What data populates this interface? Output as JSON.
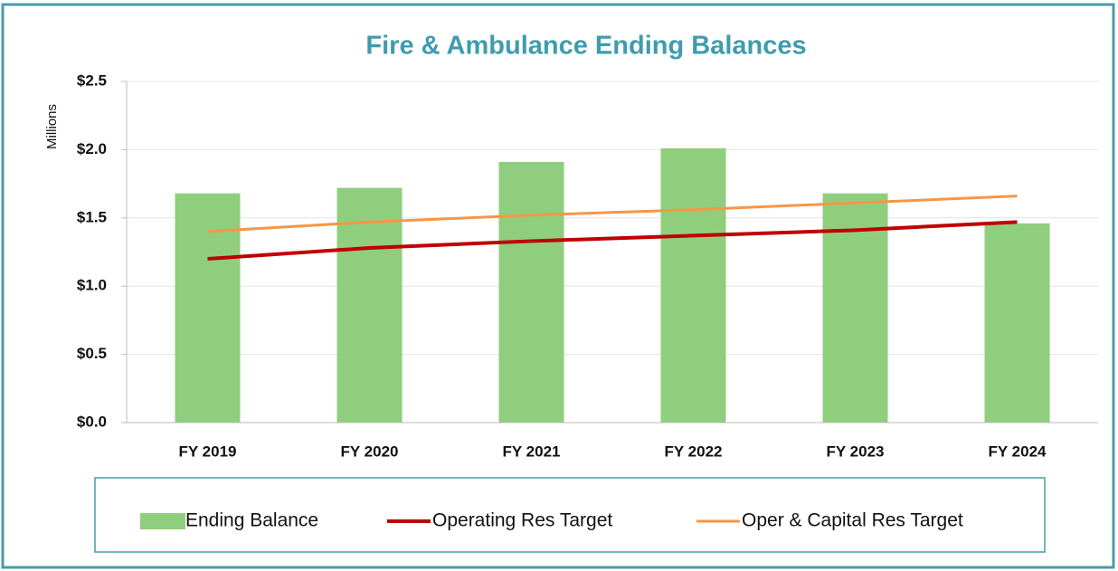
{
  "chart_data": {
    "type": "bar",
    "title": "Fire & Ambulance Ending Balances",
    "y_label": "Millions",
    "categories": [
      "FY 2019",
      "FY 2020",
      "FY 2021",
      "FY 2022",
      "FY 2023",
      "FY 2024"
    ],
    "series": [
      {
        "name": "Ending Balance",
        "type": "bar",
        "color": "#8fce7d",
        "values": [
          1.68,
          1.72,
          1.91,
          2.01,
          1.68,
          1.46
        ]
      },
      {
        "name": "Operating Res Target",
        "type": "line",
        "color": "#c00000",
        "values": [
          1.2,
          1.28,
          1.33,
          1.37,
          1.41,
          1.47
        ]
      },
      {
        "name": "Oper & Capital Res Target",
        "type": "line",
        "color": "#f79646",
        "values": [
          1.4,
          1.47,
          1.52,
          1.56,
          1.61,
          1.66
        ]
      }
    ],
    "ylim": [
      0,
      2.5
    ],
    "yticks": [
      {
        "value": 0,
        "label": "$0.0"
      },
      {
        "value": 0.5,
        "label": "$0.5"
      },
      {
        "value": 1,
        "label": "$1.0"
      },
      {
        "value": 1.5,
        "label": "$1.5"
      },
      {
        "value": 2,
        "label": "$2.0"
      },
      {
        "value": 2.5,
        "label": "$2.5"
      }
    ],
    "grid": true,
    "legend": "bottom"
  }
}
